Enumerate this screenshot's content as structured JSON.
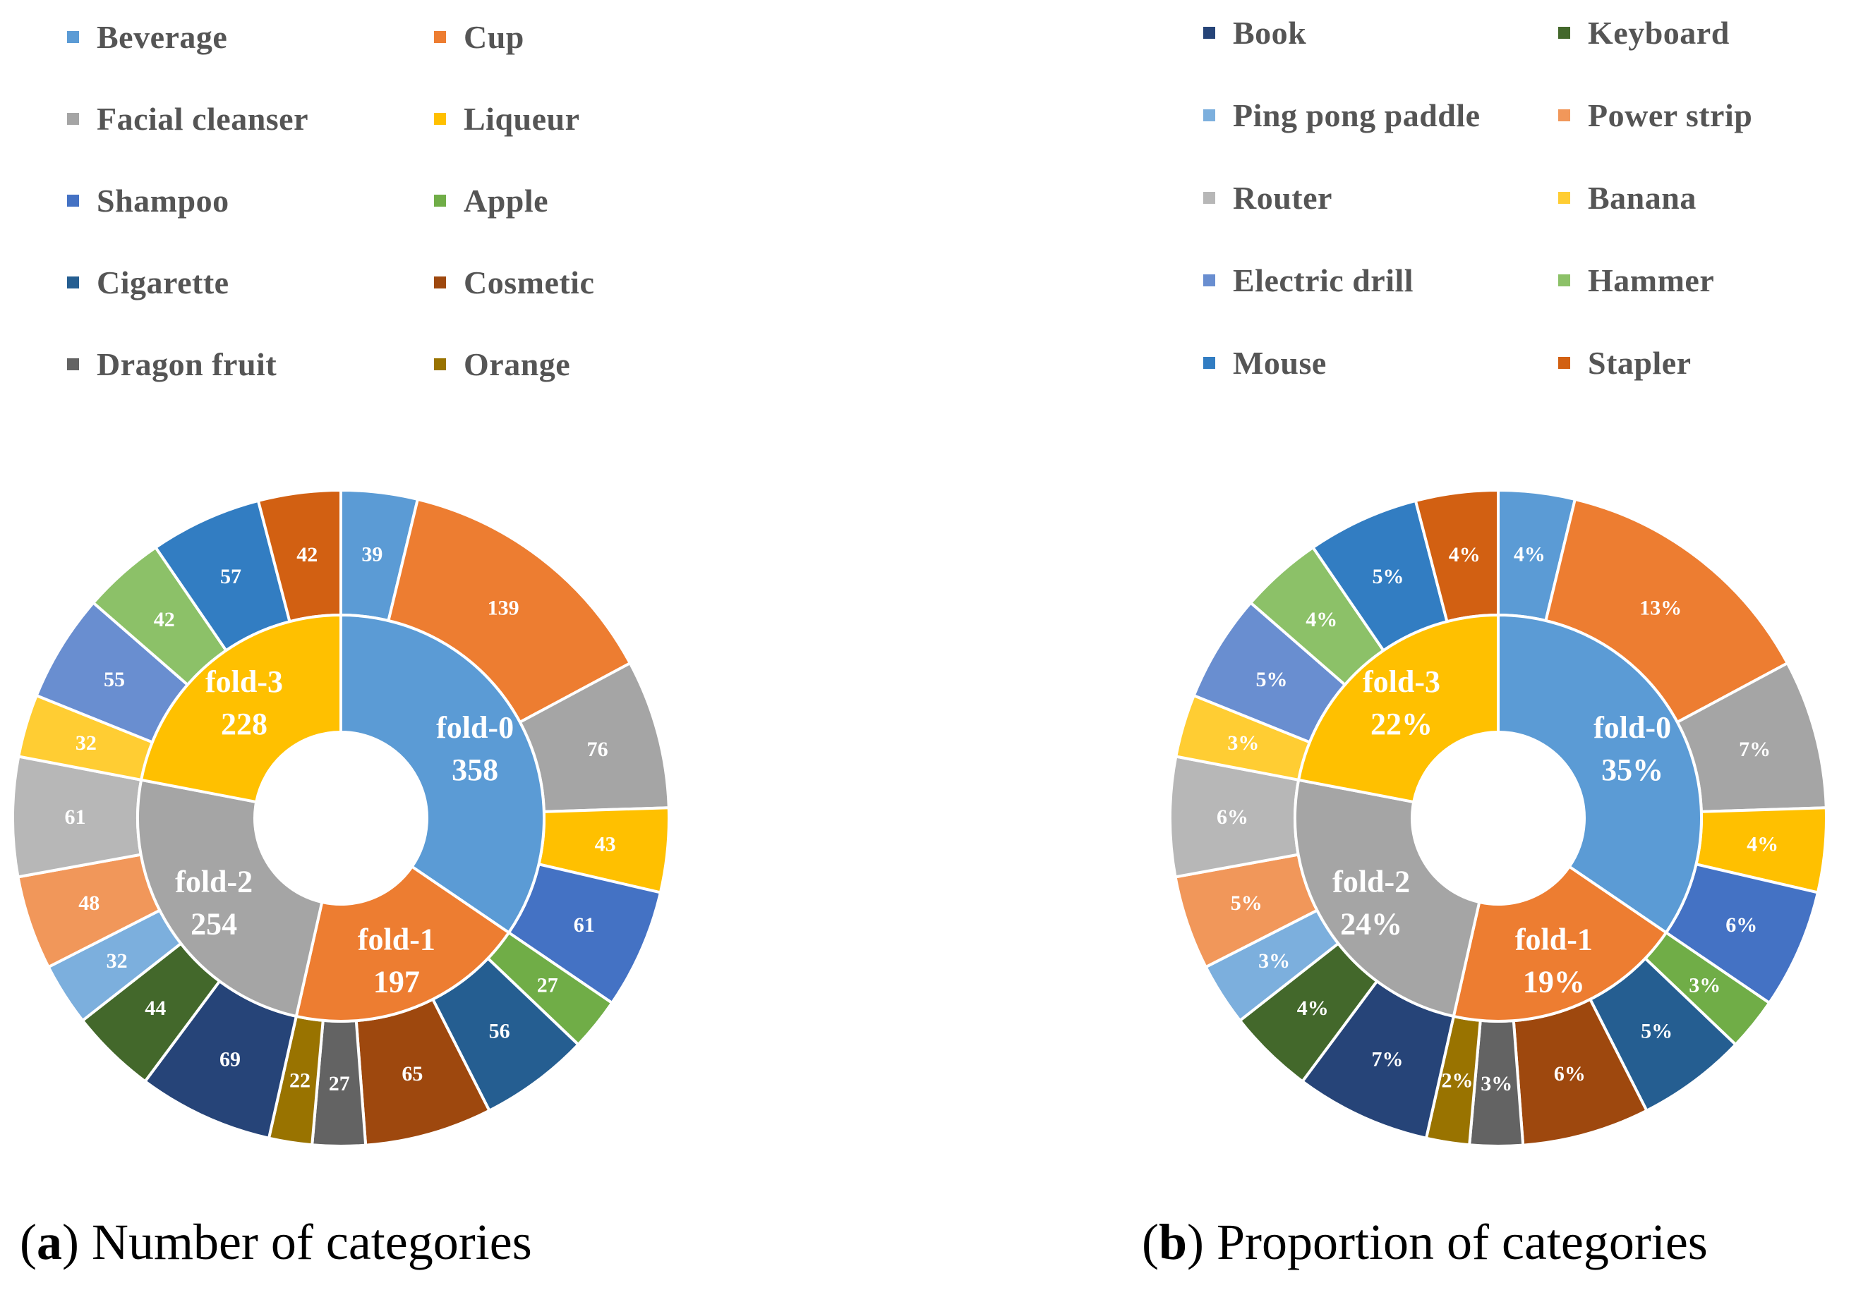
{
  "colors": {
    "Beverage": "#5B9BD5",
    "Cup": "#ED7D31",
    "Facial cleanser": "#A5A5A5",
    "Liqueur": "#FFC000",
    "Shampoo": "#4472C4",
    "Apple": "#70AD47",
    "Cigarette": "#255E91",
    "Cosmetic": "#9E480E",
    "Dragon fruit": "#636363",
    "Orange": "#997300",
    "Book": "#264478",
    "Keyboard": "#43682B",
    "Ping pong paddle": "#7CAFDD",
    "Power strip": "#F1975A",
    "Router": "#B7B7B7",
    "Banana": "#FFCD33",
    "Electric drill": "#698ED0",
    "Hammer": "#8CC168",
    "Mouse": "#327DC2",
    "Stapler": "#D26012",
    "fold-0": "#5B9BD5",
    "fold-1": "#ED7D31",
    "fold-2": "#A5A5A5",
    "fold-3": "#FFC000"
  },
  "legend_a": [
    "Beverage",
    "Cup",
    "Facial cleanser",
    "Liqueur",
    "Shampoo",
    "Apple",
    "Cigarette",
    "Cosmetic",
    "Dragon fruit",
    "Orange"
  ],
  "legend_b": [
    "Book",
    "Keyboard",
    "Ping pong paddle",
    "Power strip",
    "Router",
    "Banana",
    "Electric drill",
    "Hammer",
    "Mouse",
    "Stapler"
  ],
  "captions": {
    "a_letter": "a",
    "a_text": " Number of categories",
    "b_letter": "b",
    "b_text": " Proportion of categories"
  },
  "chart_data": [
    {
      "type": "donut",
      "title": "(a) Number of categories",
      "inner": [
        {
          "name": "fold-0",
          "value": 358,
          "label": "358"
        },
        {
          "name": "fold-1",
          "value": 197,
          "label": "197"
        },
        {
          "name": "fold-2",
          "value": 254,
          "label": "254"
        },
        {
          "name": "fold-3",
          "value": 228,
          "label": "228"
        }
      ],
      "outer": [
        {
          "name": "Beverage",
          "value": 39,
          "label": "39"
        },
        {
          "name": "Cup",
          "value": 139,
          "label": "139"
        },
        {
          "name": "Facial cleanser",
          "value": 76,
          "label": "76"
        },
        {
          "name": "Liqueur",
          "value": 43,
          "label": "43"
        },
        {
          "name": "Shampoo",
          "value": 61,
          "label": "61"
        },
        {
          "name": "Apple",
          "value": 27,
          "label": "27"
        },
        {
          "name": "Cigarette",
          "value": 56,
          "label": "56"
        },
        {
          "name": "Cosmetic",
          "value": 65,
          "label": "65"
        },
        {
          "name": "Dragon fruit",
          "value": 27,
          "label": "27"
        },
        {
          "name": "Orange",
          "value": 22,
          "label": "22"
        },
        {
          "name": "Book",
          "value": 69,
          "label": "69"
        },
        {
          "name": "Keyboard",
          "value": 44,
          "label": "44"
        },
        {
          "name": "Ping pong paddle",
          "value": 32,
          "label": "32"
        },
        {
          "name": "Power strip",
          "value": 48,
          "label": "48"
        },
        {
          "name": "Router",
          "value": 61,
          "label": "61"
        },
        {
          "name": "Banana",
          "value": 32,
          "label": "32"
        },
        {
          "name": "Electric drill",
          "value": 55,
          "label": "55"
        },
        {
          "name": "Hammer",
          "value": 42,
          "label": "42"
        },
        {
          "name": "Mouse",
          "value": 57,
          "label": "57"
        },
        {
          "name": "Stapler",
          "value": 42,
          "label": "42"
        }
      ]
    },
    {
      "type": "donut",
      "title": "(b) Proportion of categories",
      "inner": [
        {
          "name": "fold-0",
          "value": 358,
          "label": "35%"
        },
        {
          "name": "fold-1",
          "value": 197,
          "label": "19%"
        },
        {
          "name": "fold-2",
          "value": 254,
          "label": "24%"
        },
        {
          "name": "fold-3",
          "value": 228,
          "label": "22%"
        }
      ],
      "outer": [
        {
          "name": "Beverage",
          "value": 39,
          "label": "4%"
        },
        {
          "name": "Cup",
          "value": 139,
          "label": "13%"
        },
        {
          "name": "Facial cleanser",
          "value": 76,
          "label": "7%"
        },
        {
          "name": "Liqueur",
          "value": 43,
          "label": "4%"
        },
        {
          "name": "Shampoo",
          "value": 61,
          "label": "6%"
        },
        {
          "name": "Apple",
          "value": 27,
          "label": "3%"
        },
        {
          "name": "Cigarette",
          "value": 56,
          "label": "5%"
        },
        {
          "name": "Cosmetic",
          "value": 65,
          "label": "6%"
        },
        {
          "name": "Dragon fruit",
          "value": 27,
          "label": "3%"
        },
        {
          "name": "Orange",
          "value": 22,
          "label": "2%"
        },
        {
          "name": "Book",
          "value": 69,
          "label": "7%"
        },
        {
          "name": "Keyboard",
          "value": 44,
          "label": "4%"
        },
        {
          "name": "Ping pong paddle",
          "value": 32,
          "label": "3%"
        },
        {
          "name": "Power strip",
          "value": 48,
          "label": "5%"
        },
        {
          "name": "Router",
          "value": 61,
          "label": "6%"
        },
        {
          "name": "Banana",
          "value": 32,
          "label": "3%"
        },
        {
          "name": "Electric drill",
          "value": 55,
          "label": "5%"
        },
        {
          "name": "Hammer",
          "value": 42,
          "label": "4%"
        },
        {
          "name": "Mouse",
          "value": 57,
          "label": "5%"
        },
        {
          "name": "Stapler",
          "value": 42,
          "label": "4%"
        }
      ]
    }
  ]
}
